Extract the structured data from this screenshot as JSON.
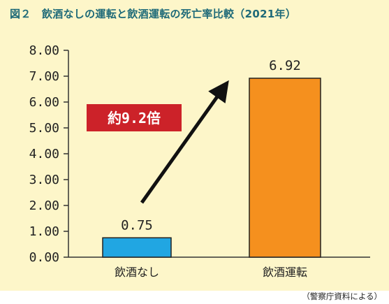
{
  "title": "図２　飲酒なしの運転と飲酒運転の死亡率比較（2021年）",
  "source": "（警察庁資料による）",
  "ratio_label": "約9.2倍",
  "colors": {
    "bar_no_alcohol": "#21a6e2",
    "bar_drunk": "#f5901e",
    "ratio_box": "#cc2229",
    "panel_background": "#fdf6c9",
    "title": "#1e6a78"
  },
  "chart_data": {
    "type": "bar",
    "title": "図２　飲酒なしの運転と飲酒運転の死亡率比較（2021年）",
    "categories": [
      "飲酒なし",
      "飲酒運転"
    ],
    "values": [
      0.75,
      6.92
    ],
    "value_labels": [
      "0.75",
      "6.92"
    ],
    "yticks": [
      "0.00",
      "1.00",
      "2.00",
      "3.00",
      "4.00",
      "5.00",
      "6.00",
      "7.00",
      "8.00"
    ],
    "ylim": [
      0,
      8
    ],
    "xlabel": "",
    "ylabel": "",
    "grid": false,
    "legend": "none",
    "annotation": "約9.2倍"
  }
}
